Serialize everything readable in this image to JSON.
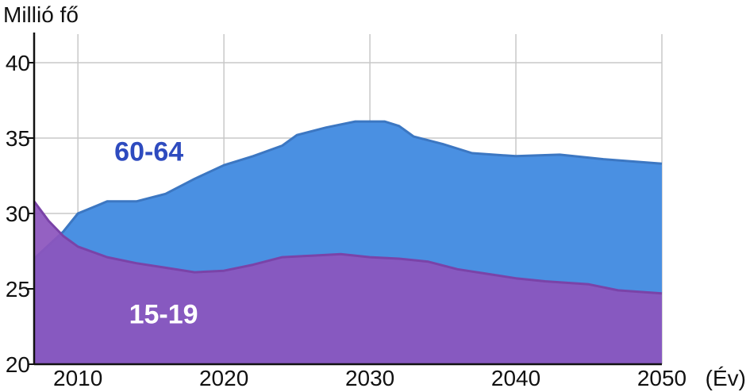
{
  "chart_data": {
    "type": "area",
    "ylabel": "Millió fő",
    "xlabel": "(Év)",
    "xlim": [
      2007,
      2050
    ],
    "ylim": [
      20,
      42
    ],
    "x_ticks": [
      2010,
      2020,
      2030,
      2040,
      2050
    ],
    "y_ticks": [
      20,
      25,
      30,
      35,
      40
    ],
    "grid": true,
    "series": [
      {
        "name": "60-64",
        "color": "#4a90e2",
        "points": [
          [
            2007,
            27.0
          ],
          [
            2009,
            28.8
          ],
          [
            2010,
            30.0
          ],
          [
            2012,
            30.8
          ],
          [
            2014,
            30.8
          ],
          [
            2016,
            31.3
          ],
          [
            2018,
            32.3
          ],
          [
            2020,
            33.2
          ],
          [
            2022,
            33.8
          ],
          [
            2024,
            34.5
          ],
          [
            2025,
            35.2
          ],
          [
            2027,
            35.7
          ],
          [
            2029,
            36.1
          ],
          [
            2031,
            36.1
          ],
          [
            2032,
            35.8
          ],
          [
            2033,
            35.1
          ],
          [
            2035,
            34.6
          ],
          [
            2037,
            34.0
          ],
          [
            2040,
            33.8
          ],
          [
            2043,
            33.9
          ],
          [
            2046,
            33.6
          ],
          [
            2050,
            33.3
          ]
        ]
      },
      {
        "name": "15-19",
        "color": "#8c55bd",
        "points": [
          [
            2007,
            30.8
          ],
          [
            2008,
            29.5
          ],
          [
            2009,
            28.5
          ],
          [
            2010,
            27.8
          ],
          [
            2012,
            27.1
          ],
          [
            2014,
            26.7
          ],
          [
            2016,
            26.4
          ],
          [
            2018,
            26.1
          ],
          [
            2020,
            26.2
          ],
          [
            2022,
            26.6
          ],
          [
            2024,
            27.1
          ],
          [
            2026,
            27.2
          ],
          [
            2028,
            27.3
          ],
          [
            2030,
            27.1
          ],
          [
            2032,
            27.0
          ],
          [
            2034,
            26.8
          ],
          [
            2036,
            26.3
          ],
          [
            2038,
            26.0
          ],
          [
            2040,
            25.7
          ],
          [
            2042,
            25.5
          ],
          [
            2045,
            25.3
          ],
          [
            2047,
            24.9
          ],
          [
            2050,
            24.7
          ]
        ]
      }
    ],
    "annotations": [
      {
        "text": "60-64",
        "x": 2012.5,
        "y": 33.5,
        "color": "#2e4bbf"
      },
      {
        "text": "15-19",
        "x": 2013.5,
        "y": 22.7,
        "color": "#ffffff"
      }
    ]
  }
}
